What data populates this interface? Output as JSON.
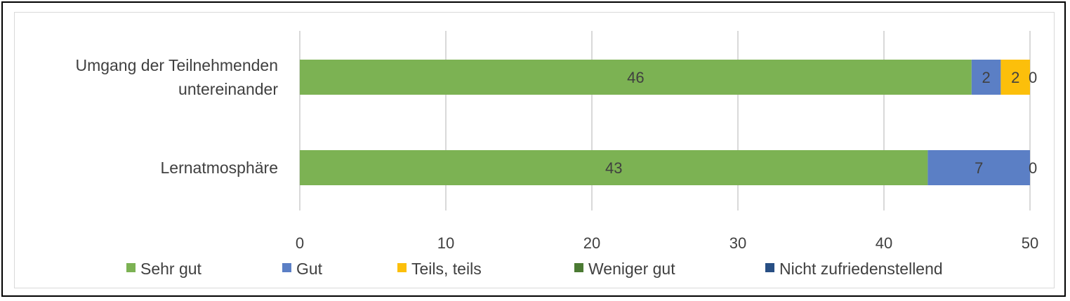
{
  "chart_data": {
    "type": "bar",
    "orientation": "horizontal",
    "stacked": true,
    "categories": [
      "Umgang der Teilnehmenden untereinander",
      "Lernatmosphäre"
    ],
    "category_lines": [
      [
        "Umgang der Teilnehmenden",
        "untereinander"
      ],
      [
        "Lernatmosphäre"
      ]
    ],
    "series": [
      {
        "name": "Sehr gut",
        "color": "#7cb253",
        "values": [
          46,
          43
        ]
      },
      {
        "name": "Gut",
        "color": "#5b7fc5",
        "values": [
          2,
          7
        ]
      },
      {
        "name": "Teils, teils",
        "color": "#fcbf0b",
        "values": [
          2,
          0
        ]
      },
      {
        "name": "Weniger gut",
        "color": "#4b7a33",
        "values": [
          0,
          0
        ]
      },
      {
        "name": "Nicht zufriedenstellend",
        "color": "#284f84",
        "values": [
          0,
          0
        ]
      }
    ],
    "data_labels": [
      [
        "46",
        "2",
        "2",
        "0"
      ],
      [
        "43",
        "7",
        "0"
      ]
    ],
    "x_ticks": [
      "0",
      "10",
      "20",
      "30",
      "40",
      "50"
    ],
    "xlim": [
      0,
      50
    ],
    "grid": true,
    "legend_position": "bottom",
    "label_color": "#404040",
    "grid_color": "#d9d9d9"
  }
}
